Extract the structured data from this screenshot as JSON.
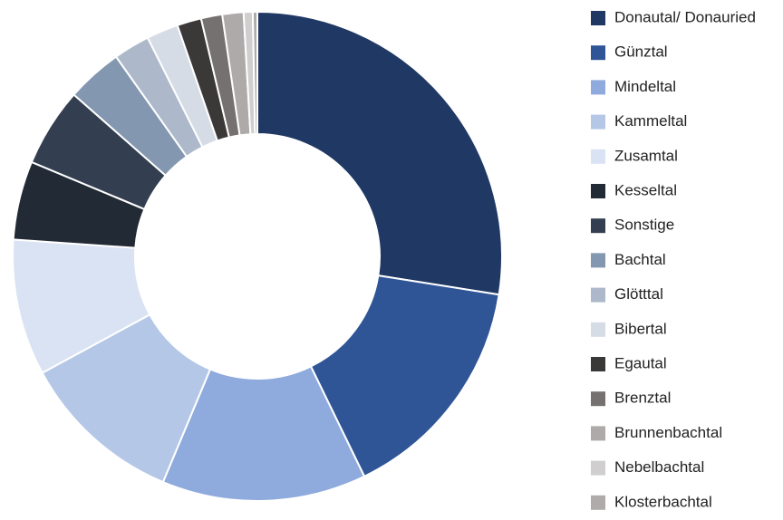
{
  "chart_data": {
    "type": "donut",
    "categories": [
      "Donautal/ Donauried",
      "Günztal",
      "Mindeltal",
      "Kammeltal",
      "Zusamtal",
      "Kesseltal",
      "Sonstige",
      "Bachtal",
      "Glötttal",
      "Bibertal",
      "Egautal",
      "Brenztal",
      "Brunnenbachtal",
      "Nebelbachtal",
      "Klosterbachtal"
    ],
    "values": [
      27.5,
      15.3,
      13.5,
      10.8,
      9.0,
      5.2,
      5.2,
      3.7,
      2.4,
      2.1,
      1.6,
      1.4,
      1.4,
      0.6,
      0.3
    ],
    "colors": [
      "#1f3864",
      "#2f5597",
      "#8faadc",
      "#b4c7e7",
      "#dae3f3",
      "#222a35",
      "#333f50",
      "#8497b0",
      "#adb9ca",
      "#d6dce5",
      "#3b3838",
      "#767171",
      "#aeaaaa",
      "#d0cece",
      "#afabab"
    ],
    "legend": "right"
  }
}
